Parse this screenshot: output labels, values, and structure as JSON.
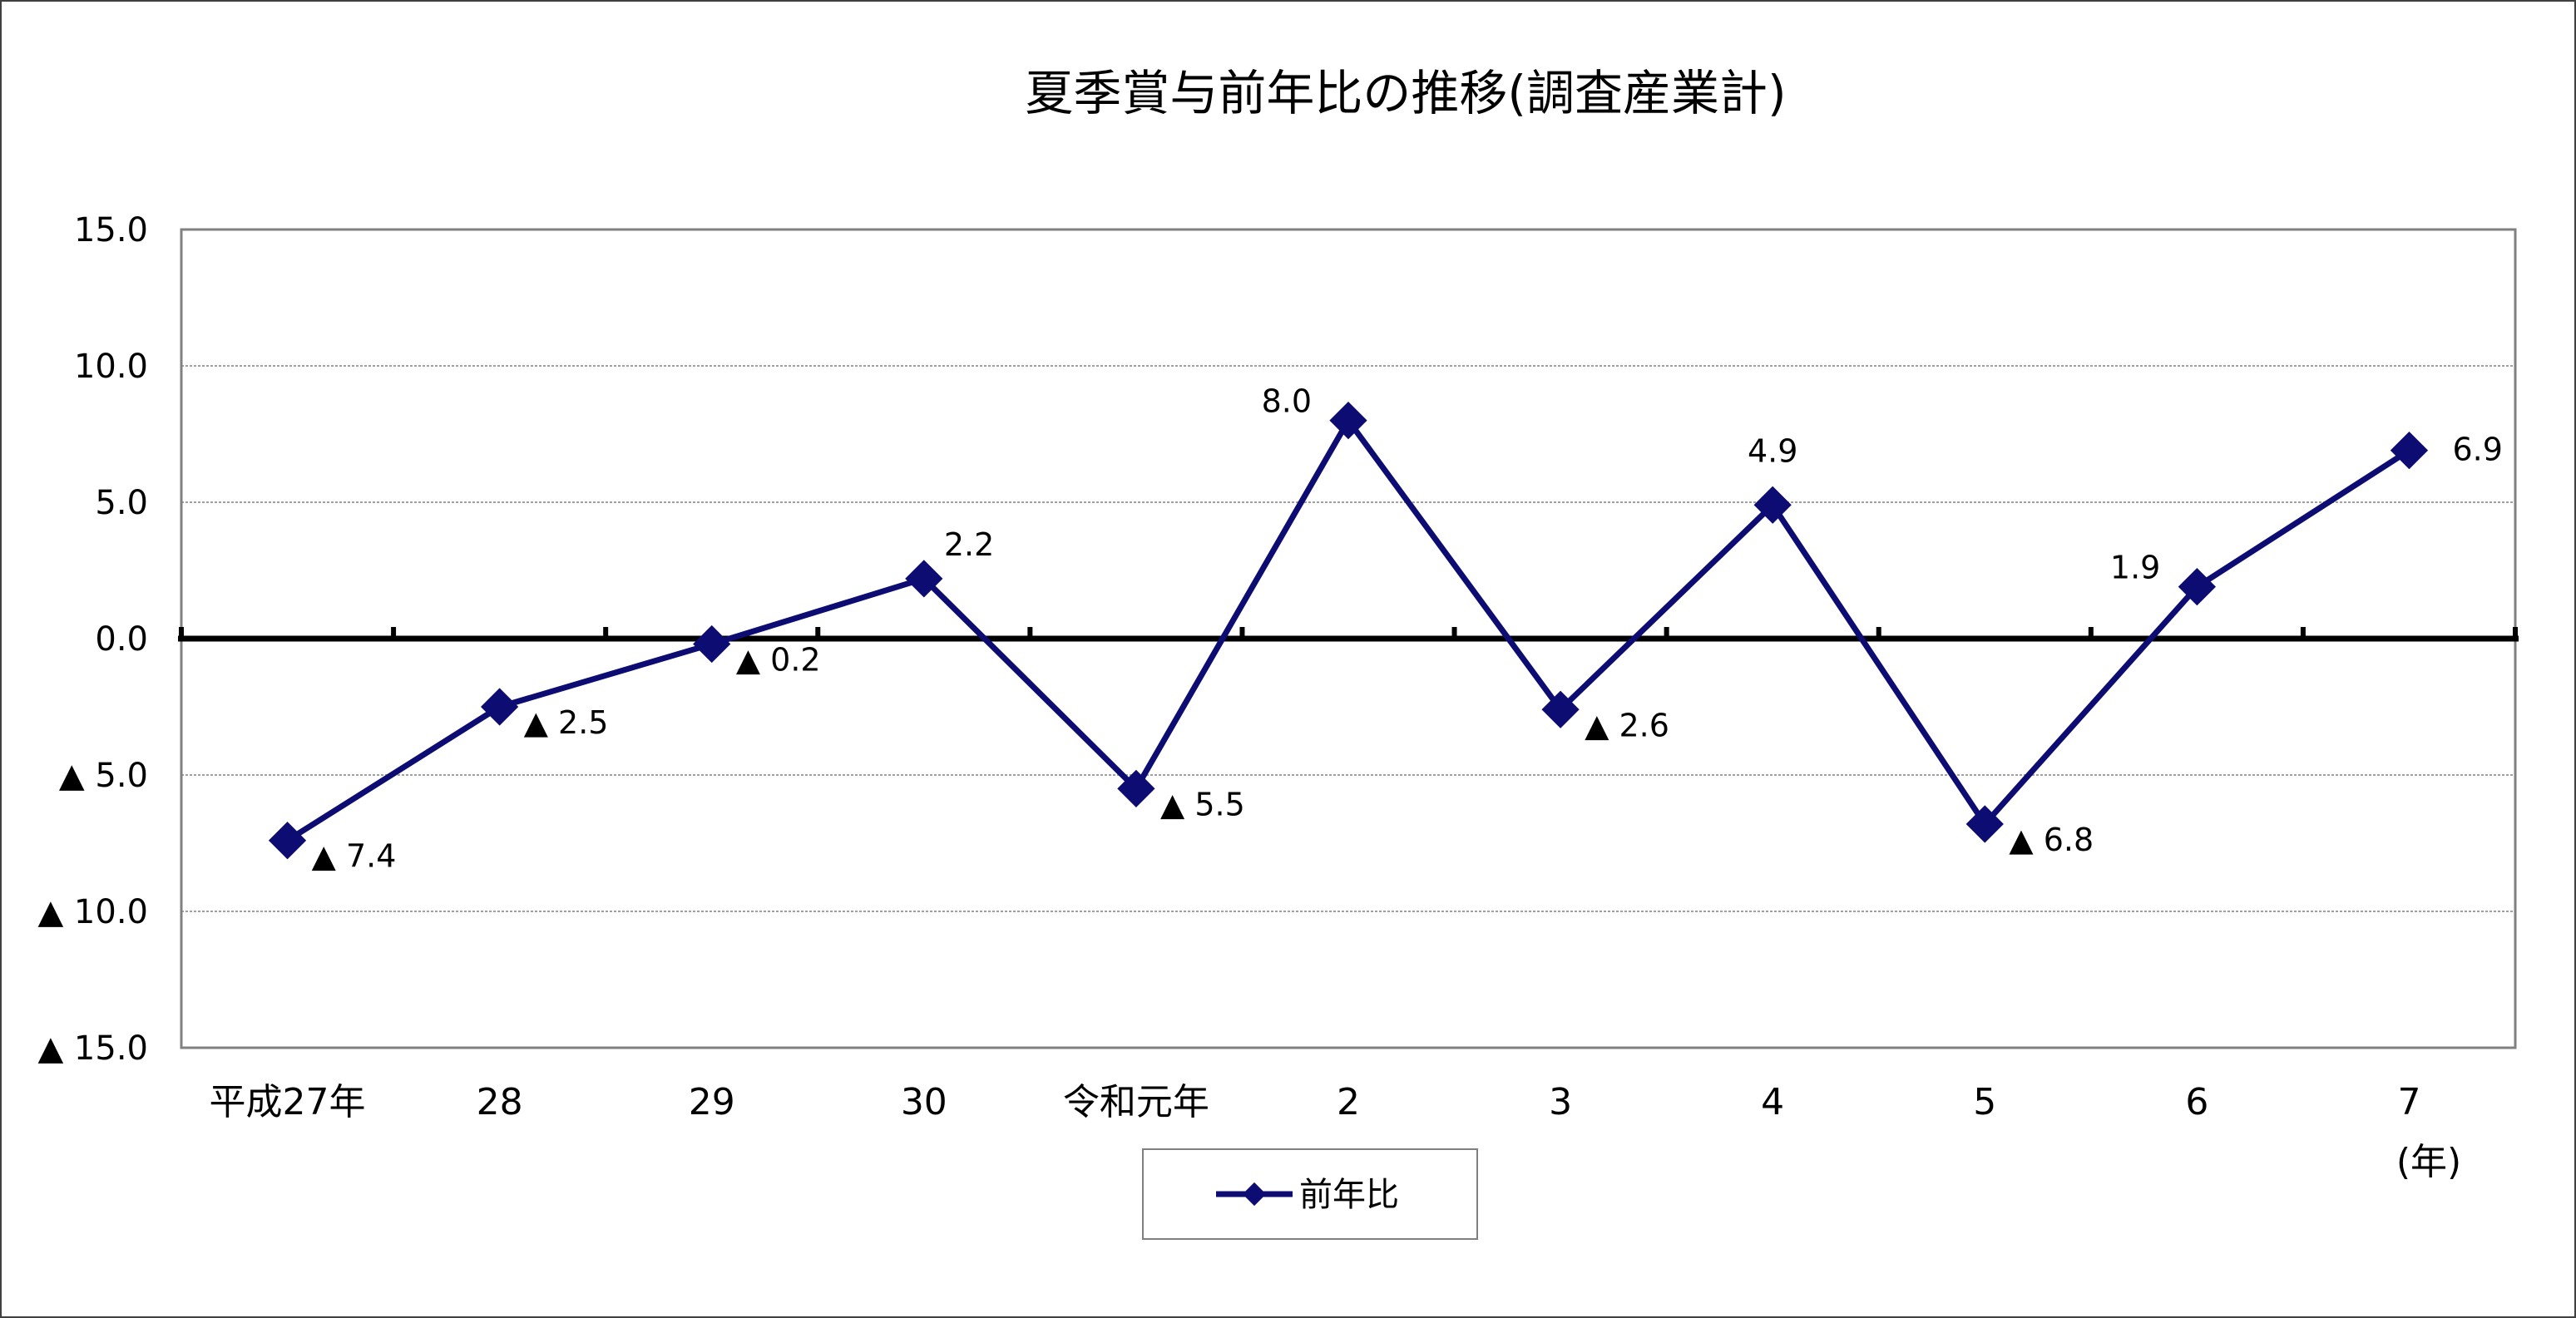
{
  "chart_data": {
    "type": "line",
    "title": "夏季賞与前年比の推移(調査産業計)",
    "xlabel": "",
    "ylabel": "",
    "x_unit_label": "(年)",
    "categories": [
      "平成27年",
      "28",
      "29",
      "30",
      "令和元年",
      "2",
      "3",
      "4",
      "5",
      "6",
      "7"
    ],
    "series": [
      {
        "name": "前年比",
        "values": [
          -7.4,
          -2.5,
          -0.2,
          2.2,
          -5.5,
          8.0,
          -2.6,
          4.9,
          -6.8,
          1.9,
          6.9
        ],
        "data_labels": [
          "▲ 7.4",
          "▲ 2.5",
          "▲ 0.2",
          "2.2",
          "▲ 5.5",
          "8.0",
          "▲ 2.6",
          "4.9",
          "▲ 6.8",
          "1.9",
          "6.9"
        ],
        "color": "#0c0c73"
      }
    ],
    "ylim": [
      -15,
      15
    ],
    "y_ticks": [
      15,
      10,
      5,
      0,
      -5,
      -10,
      -15
    ],
    "y_tick_labels": [
      "15.0",
      "10.0",
      "5.0",
      "0.0",
      "▲ 5.0",
      "▲ 10.0",
      "▲ 15.0"
    ],
    "grid": true,
    "legend_position": "bottom-center"
  },
  "colors": {
    "series_line": "#0c0c73",
    "gridline": "#a0a0a0",
    "zero_line": "#000000",
    "frame": "#000000"
  }
}
